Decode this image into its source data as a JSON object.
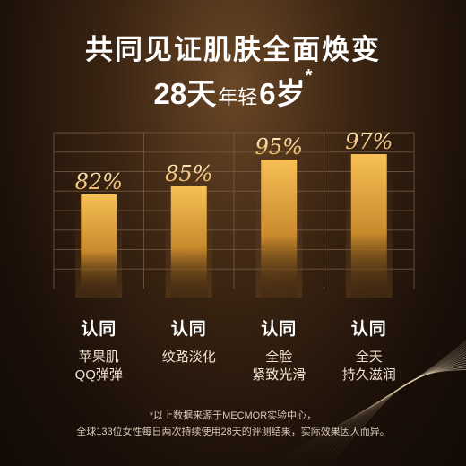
{
  "title_line1": "共同见证肌肤全面焕变",
  "title_line2": {
    "num1": "28天",
    "small": "年轻",
    "num2": "6岁",
    "star": "*"
  },
  "chart_data": {
    "type": "bar",
    "categories": [
      "认同 苹果肌QQ弹弹",
      "认同 纹路淡化",
      "认同 全脸紧致光滑",
      "认同 全天持久滋润"
    ],
    "values": [
      82,
      85,
      95,
      97
    ],
    "value_labels": [
      "82%",
      "85%",
      "95%",
      "97%"
    ],
    "ylim": [
      0,
      100
    ],
    "grid": true,
    "bar_color": "#f0b048"
  },
  "captions": [
    {
      "head": "认同",
      "desc1": "苹果肌",
      "desc2": "QQ弹弹"
    },
    {
      "head": "认同",
      "desc1": "纹路淡化",
      "desc2": ""
    },
    {
      "head": "认同",
      "desc1": "全脸",
      "desc2": "紧致光滑"
    },
    {
      "head": "认同",
      "desc1": "全天",
      "desc2": "持久滋润"
    }
  ],
  "footnote": {
    "line1": "*以上数据来源于MECMOR实验中心，",
    "line2": "全球133位女性每日两次持续使用28天的评测结果，实际效果因人而异。"
  }
}
